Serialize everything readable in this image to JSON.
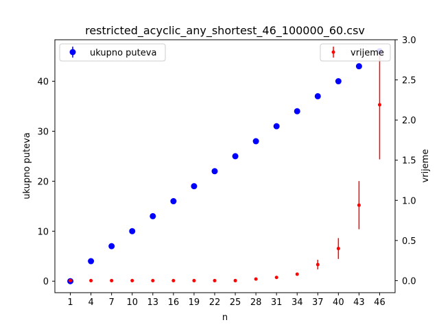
{
  "chart_data": {
    "type": "scatter",
    "title": "restricted_acyclic_any_shortest_46_100000_60.csv",
    "xlabel": "n",
    "ylabel_left": "ukupno puteva",
    "ylabel_right": "vrijeme",
    "x_ticks": [
      "1",
      "4",
      "7",
      "10",
      "13",
      "16",
      "19",
      "22",
      "25",
      "28",
      "31",
      "34",
      "37",
      "40",
      "43",
      "46"
    ],
    "y_left_ticks": [
      "0",
      "10",
      "20",
      "30",
      "40"
    ],
    "y_right_ticks": [
      "0.0",
      "0.5",
      "1.0",
      "1.5",
      "2.0",
      "2.5",
      "3.0"
    ],
    "y_left_lim": [
      -2.3,
      48.3
    ],
    "y_right_lim": [
      -0.15,
      3.0
    ],
    "x_lim": [
      -1.25,
      48.25
    ],
    "grid": false,
    "series": [
      {
        "name": "ukupno puteva",
        "axis": "left",
        "color": "#0000ff",
        "marker": "circle",
        "x": [
          1,
          4,
          7,
          10,
          13,
          16,
          19,
          22,
          25,
          28,
          31,
          34,
          37,
          40,
          43,
          46
        ],
        "y": [
          0,
          4,
          7,
          10,
          13,
          16,
          19,
          22,
          25,
          28,
          31,
          34,
          37,
          40,
          43,
          46
        ],
        "err": [
          0,
          0,
          0,
          0,
          0,
          0,
          0,
          0,
          0,
          0,
          0,
          0,
          0,
          0,
          0,
          0
        ]
      },
      {
        "name": "vrijeme",
        "axis": "right",
        "color": "#ff0000",
        "marker": "dot",
        "x": [
          1,
          4,
          7,
          10,
          13,
          16,
          19,
          22,
          25,
          28,
          31,
          34,
          37,
          40,
          43,
          46
        ],
        "y": [
          0.0,
          0.0,
          0.0,
          0.0,
          0.0,
          0.0,
          0.0,
          0.0,
          0.0,
          0.02,
          0.04,
          0.08,
          0.2,
          0.4,
          0.94,
          2.19
        ],
        "err": [
          0.0,
          0.0,
          0.0,
          0.0,
          0.0,
          0.0,
          0.0,
          0.0,
          0.0,
          0.0,
          0.0,
          0.01,
          0.06,
          0.13,
          0.3,
          0.68
        ]
      }
    ],
    "legend_left": {
      "placement": "upper-left",
      "label": "ukupno puteva"
    },
    "legend_right": {
      "placement": "upper-right",
      "label": "vrijeme"
    }
  }
}
